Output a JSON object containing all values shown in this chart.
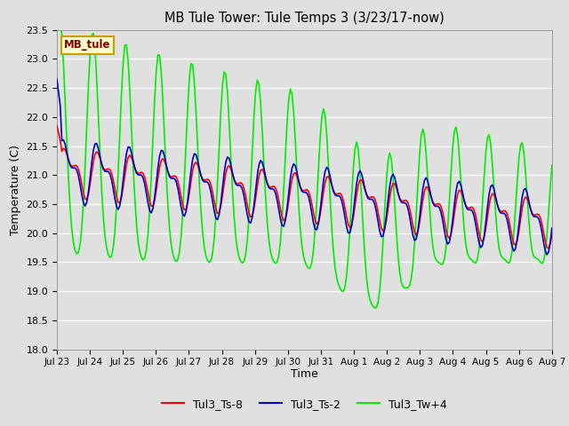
{
  "title": "MB Tule Tower: Tule Temps 3 (3/23/17-now)",
  "xlabel": "Time",
  "ylabel": "Temperature (C)",
  "ylim": [
    18.0,
    23.5
  ],
  "yticks": [
    18.0,
    18.5,
    19.0,
    19.5,
    20.0,
    20.5,
    21.0,
    21.5,
    22.0,
    22.5,
    23.0,
    23.5
  ],
  "xtick_labels": [
    "Jul 23",
    "Jul 24",
    "Jul 25",
    "Jul 26",
    "Jul 27",
    "Jul 28",
    "Jul 29",
    "Jul 30",
    "Jul 31",
    "Aug 1",
    "Aug 2",
    "Aug 3",
    "Aug 4",
    "Aug 5",
    "Aug 6",
    "Aug 7"
  ],
  "bg_color": "#e0e0e0",
  "grid_color": "#ffffff",
  "legend_box_color": "#ffffcc",
  "legend_box_edge": "#c8a000",
  "legend_label_color": "#800000",
  "legend_text": "MB_tule",
  "line_ts8_color": "#ff0000",
  "line_ts2_color": "#0000cc",
  "line_tw4_color": "#00ee00",
  "line_width": 1.2,
  "figsize": [
    6.4,
    4.8
  ],
  "dpi": 100
}
